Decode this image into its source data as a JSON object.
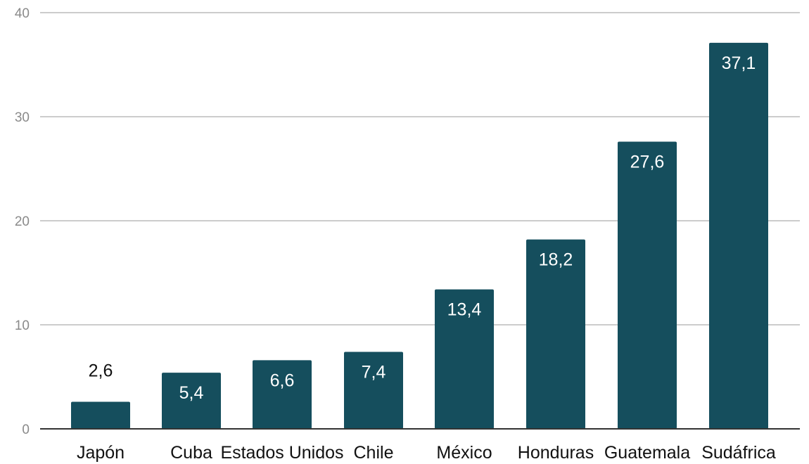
{
  "chart_data": {
    "type": "bar",
    "categories": [
      "Japón",
      "Cuba",
      "Estados Unidos",
      "Chile",
      "México",
      "Honduras",
      "Guatemala",
      "Sudáfrica"
    ],
    "values": [
      2.6,
      5.4,
      6.6,
      7.4,
      13.4,
      18.2,
      27.6,
      37.1
    ],
    "value_labels": [
      "2,6",
      "5,4",
      "6,6",
      "7,4",
      "13,4",
      "18,2",
      "27,6",
      "37,1"
    ],
    "y_ticks": [
      0,
      10,
      20,
      30,
      40
    ],
    "ylim": [
      0,
      40
    ],
    "grid": true,
    "legend": "none",
    "colors": {
      "bar": "#154e5d",
      "grid": "#cccccc",
      "axis": "#333333",
      "tick_label": "#8a8a8a",
      "category_label": "#111111",
      "inside_label": "#ffffff",
      "outside_label": "#111111"
    }
  }
}
